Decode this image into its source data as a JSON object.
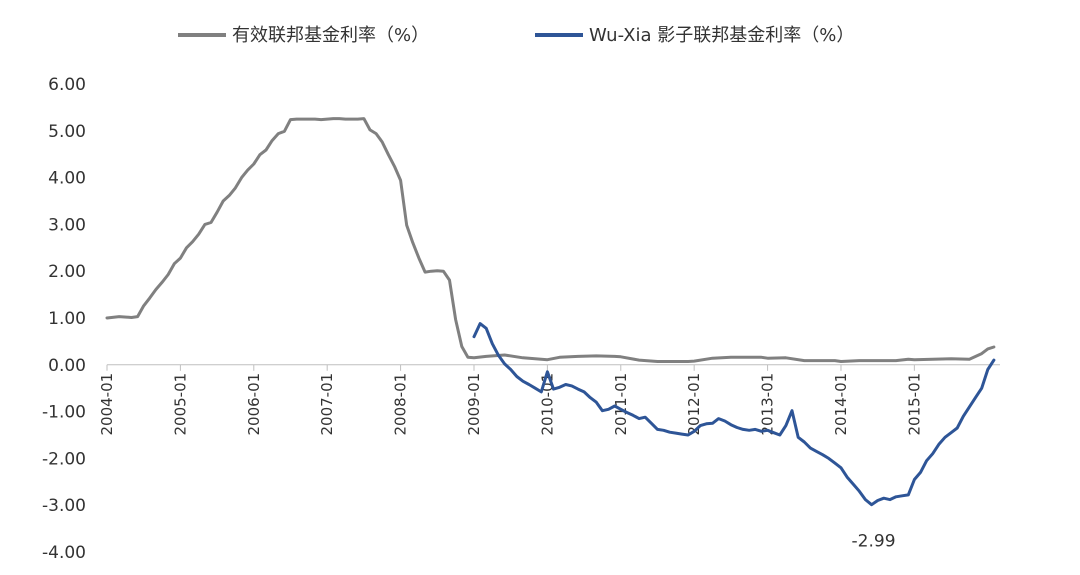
{
  "chart_data": {
    "type": "line",
    "title": "",
    "xlabel": "",
    "ylabel": "",
    "ylim": [
      -4,
      6
    ],
    "yticks": [
      "6.00",
      "5.00",
      "4.00",
      "3.00",
      "2.00",
      "1.00",
      "0.00",
      "-1.00",
      "-2.00",
      "-3.00",
      "-4.00"
    ],
    "xticks": [
      "2004-01",
      "2005-01",
      "2006-01",
      "2007-01",
      "2008-01",
      "2009-01",
      "2010-01",
      "2011-01",
      "2012-01",
      "2013-01",
      "2014-01",
      "2015-01"
    ],
    "xlim": [
      "2004-01",
      "2016-03"
    ],
    "grid": false,
    "legend_position": "top-center",
    "series": [
      {
        "name": "有效联邦基金利率（%）",
        "color": "#808080",
        "points": [
          [
            "2004-01",
            1.0
          ],
          [
            "2004-03",
            1.03
          ],
          [
            "2004-05",
            1.01
          ],
          [
            "2004-06",
            1.03
          ],
          [
            "2004-07",
            1.26
          ],
          [
            "2004-08",
            1.43
          ],
          [
            "2004-09",
            1.61
          ],
          [
            "2004-10",
            1.76
          ],
          [
            "2004-11",
            1.93
          ],
          [
            "2004-12",
            2.16
          ],
          [
            "2005-01",
            2.28
          ],
          [
            "2005-02",
            2.5
          ],
          [
            "2005-03",
            2.63
          ],
          [
            "2005-04",
            2.79
          ],
          [
            "2005-05",
            3.0
          ],
          [
            "2005-06",
            3.04
          ],
          [
            "2005-07",
            3.26
          ],
          [
            "2005-08",
            3.5
          ],
          [
            "2005-09",
            3.62
          ],
          [
            "2005-10",
            3.78
          ],
          [
            "2005-11",
            4.0
          ],
          [
            "2005-12",
            4.16
          ],
          [
            "2006-01",
            4.29
          ],
          [
            "2006-02",
            4.49
          ],
          [
            "2006-03",
            4.59
          ],
          [
            "2006-04",
            4.79
          ],
          [
            "2006-05",
            4.94
          ],
          [
            "2006-06",
            4.99
          ],
          [
            "2006-07",
            5.24
          ],
          [
            "2006-08",
            5.25
          ],
          [
            "2006-09",
            5.25
          ],
          [
            "2006-10",
            5.25
          ],
          [
            "2006-11",
            5.25
          ],
          [
            "2006-12",
            5.24
          ],
          [
            "2007-01",
            5.25
          ],
          [
            "2007-02",
            5.26
          ],
          [
            "2007-03",
            5.26
          ],
          [
            "2007-04",
            5.25
          ],
          [
            "2007-05",
            5.25
          ],
          [
            "2007-06",
            5.25
          ],
          [
            "2007-07",
            5.26
          ],
          [
            "2007-08",
            5.02
          ],
          [
            "2007-09",
            4.94
          ],
          [
            "2007-10",
            4.76
          ],
          [
            "2007-11",
            4.49
          ],
          [
            "2007-12",
            4.24
          ],
          [
            "2008-01",
            3.94
          ],
          [
            "2008-02",
            2.98
          ],
          [
            "2008-03",
            2.61
          ],
          [
            "2008-04",
            2.28
          ],
          [
            "2008-05",
            1.98
          ],
          [
            "2008-06",
            2.0
          ],
          [
            "2008-07",
            2.01
          ],
          [
            "2008-08",
            2.0
          ],
          [
            "2008-09",
            1.81
          ],
          [
            "2008-10",
            0.97
          ],
          [
            "2008-11",
            0.39
          ],
          [
            "2008-12",
            0.16
          ],
          [
            "2009-01",
            0.15
          ],
          [
            "2009-03",
            0.18
          ],
          [
            "2009-06",
            0.21
          ],
          [
            "2009-09",
            0.15
          ],
          [
            "2009-12",
            0.12
          ],
          [
            "2010-01",
            0.11
          ],
          [
            "2010-03",
            0.16
          ],
          [
            "2010-06",
            0.18
          ],
          [
            "2010-09",
            0.19
          ],
          [
            "2010-12",
            0.18
          ],
          [
            "2011-01",
            0.17
          ],
          [
            "2011-04",
            0.1
          ],
          [
            "2011-07",
            0.07
          ],
          [
            "2011-10",
            0.07
          ],
          [
            "2011-12",
            0.07
          ],
          [
            "2012-01",
            0.08
          ],
          [
            "2012-04",
            0.14
          ],
          [
            "2012-07",
            0.16
          ],
          [
            "2012-10",
            0.16
          ],
          [
            "2012-12",
            0.16
          ],
          [
            "2013-01",
            0.14
          ],
          [
            "2013-04",
            0.15
          ],
          [
            "2013-07",
            0.09
          ],
          [
            "2013-10",
            0.09
          ],
          [
            "2013-12",
            0.09
          ],
          [
            "2014-01",
            0.07
          ],
          [
            "2014-04",
            0.09
          ],
          [
            "2014-07",
            0.09
          ],
          [
            "2014-10",
            0.09
          ],
          [
            "2014-12",
            0.12
          ],
          [
            "2015-01",
            0.11
          ],
          [
            "2015-04",
            0.12
          ],
          [
            "2015-07",
            0.13
          ],
          [
            "2015-10",
            0.12
          ],
          [
            "2015-12",
            0.24
          ],
          [
            "2016-01",
            0.34
          ],
          [
            "2016-02",
            0.38
          ]
        ]
      },
      {
        "name": "Wu-Xia 影子联邦基金利率（%）",
        "color": "#2E5597",
        "points": [
          [
            "2009-01",
            0.6
          ],
          [
            "2009-02",
            0.88
          ],
          [
            "2009-03",
            0.78
          ],
          [
            "2009-04",
            0.45
          ],
          [
            "2009-05",
            0.2
          ],
          [
            "2009-06",
            0.02
          ],
          [
            "2009-07",
            -0.1
          ],
          [
            "2009-08",
            -0.25
          ],
          [
            "2009-09",
            -0.35
          ],
          [
            "2009-10",
            -0.42
          ],
          [
            "2009-11",
            -0.5
          ],
          [
            "2009-12",
            -0.58
          ],
          [
            "2010-01",
            -0.15
          ],
          [
            "2010-02",
            -0.52
          ],
          [
            "2010-03",
            -0.48
          ],
          [
            "2010-04",
            -0.42
          ],
          [
            "2010-05",
            -0.45
          ],
          [
            "2010-06",
            -0.52
          ],
          [
            "2010-07",
            -0.58
          ],
          [
            "2010-08",
            -0.7
          ],
          [
            "2010-09",
            -0.8
          ],
          [
            "2010-10",
            -0.98
          ],
          [
            "2010-11",
            -0.95
          ],
          [
            "2010-12",
            -0.88
          ],
          [
            "2011-01",
            -0.95
          ],
          [
            "2011-02",
            -1.02
          ],
          [
            "2011-03",
            -1.08
          ],
          [
            "2011-04",
            -1.15
          ],
          [
            "2011-05",
            -1.12
          ],
          [
            "2011-06",
            -1.25
          ],
          [
            "2011-07",
            -1.38
          ],
          [
            "2011-08",
            -1.4
          ],
          [
            "2011-09",
            -1.44
          ],
          [
            "2011-10",
            -1.46
          ],
          [
            "2011-11",
            -1.48
          ],
          [
            "2011-12",
            -1.5
          ],
          [
            "2012-01",
            -1.42
          ],
          [
            "2012-02",
            -1.3
          ],
          [
            "2012-03",
            -1.26
          ],
          [
            "2012-04",
            -1.25
          ],
          [
            "2012-05",
            -1.15
          ],
          [
            "2012-06",
            -1.2
          ],
          [
            "2012-07",
            -1.28
          ],
          [
            "2012-08",
            -1.34
          ],
          [
            "2012-09",
            -1.38
          ],
          [
            "2012-10",
            -1.4
          ],
          [
            "2012-11",
            -1.38
          ],
          [
            "2012-12",
            -1.42
          ],
          [
            "2013-01",
            -1.4
          ],
          [
            "2013-02",
            -1.45
          ],
          [
            "2013-03",
            -1.5
          ],
          [
            "2013-04",
            -1.3
          ],
          [
            "2013-05",
            -0.98
          ],
          [
            "2013-06",
            -1.55
          ],
          [
            "2013-07",
            -1.65
          ],
          [
            "2013-08",
            -1.78
          ],
          [
            "2013-09",
            -1.85
          ],
          [
            "2013-10",
            -1.92
          ],
          [
            "2013-11",
            -2.0
          ],
          [
            "2013-12",
            -2.1
          ],
          [
            "2014-01",
            -2.2
          ],
          [
            "2014-02",
            -2.4
          ],
          [
            "2014-03",
            -2.55
          ],
          [
            "2014-04",
            -2.7
          ],
          [
            "2014-05",
            -2.88
          ],
          [
            "2014-06",
            -2.99
          ],
          [
            "2014-07",
            -2.9
          ],
          [
            "2014-08",
            -2.85
          ],
          [
            "2014-09",
            -2.88
          ],
          [
            "2014-10",
            -2.82
          ],
          [
            "2014-11",
            -2.8
          ],
          [
            "2014-12",
            -2.78
          ],
          [
            "2015-01",
            -2.45
          ],
          [
            "2015-02",
            -2.3
          ],
          [
            "2015-03",
            -2.05
          ],
          [
            "2015-04",
            -1.9
          ],
          [
            "2015-05",
            -1.7
          ],
          [
            "2015-06",
            -1.55
          ],
          [
            "2015-07",
            -1.45
          ],
          [
            "2015-08",
            -1.35
          ],
          [
            "2015-09",
            -1.1
          ],
          [
            "2015-10",
            -0.9
          ],
          [
            "2015-11",
            -0.7
          ],
          [
            "2015-12",
            -0.5
          ],
          [
            "2016-01",
            -0.1
          ],
          [
            "2016-02",
            0.1
          ]
        ]
      }
    ],
    "annotations": [
      {
        "text": "-2.99",
        "x": "2014-06",
        "y": -2.99
      }
    ]
  }
}
